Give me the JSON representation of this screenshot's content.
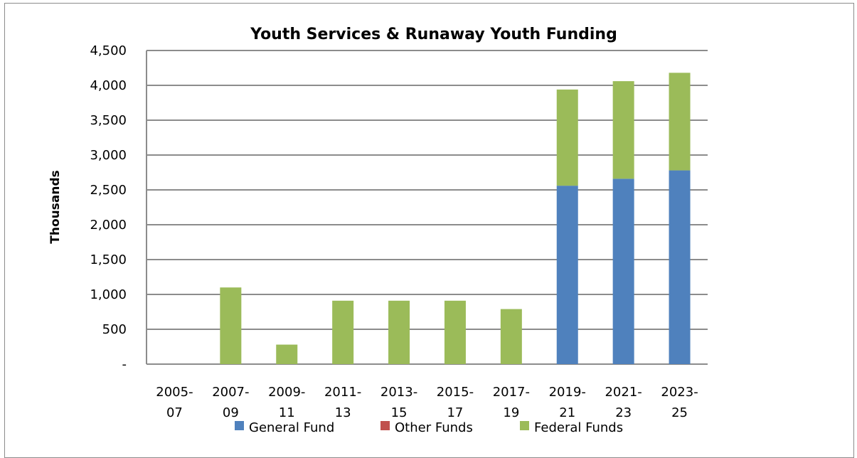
{
  "chart_data": {
    "type": "bar",
    "stacked": true,
    "title": "Youth Services & Runaway Youth Funding",
    "xlabel": "",
    "ylabel": "Thousands",
    "ylim": [
      0,
      4500
    ],
    "yticks": [
      0,
      500,
      1000,
      1500,
      2000,
      2500,
      3000,
      3500,
      4000,
      4500
    ],
    "ytick_labels": [
      "-",
      "500",
      "1,000",
      "1,500",
      "2,000",
      "2,500",
      "3,000",
      "3,500",
      "4,000",
      "4,500"
    ],
    "grid": true,
    "legend_position": "bottom",
    "categories": [
      [
        "2005-",
        "07"
      ],
      [
        "2007-",
        "09"
      ],
      [
        "2009-",
        "11"
      ],
      [
        "2011-",
        "13"
      ],
      [
        "2013-",
        "15"
      ],
      [
        "2015-",
        "17"
      ],
      [
        "2017-",
        "19"
      ],
      [
        "2019-",
        "21"
      ],
      [
        "2021-",
        "23"
      ],
      [
        "2023-",
        "25"
      ]
    ],
    "series": [
      {
        "name": "General Fund",
        "color": "#4f81bd",
        "values": [
          0,
          0,
          0,
          0,
          0,
          0,
          0,
          2560,
          2660,
          2780
        ]
      },
      {
        "name": "Other Funds",
        "color": "#c0504d",
        "values": [
          0,
          0,
          0,
          0,
          0,
          0,
          0,
          0,
          0,
          0
        ]
      },
      {
        "name": "Federal Funds",
        "color": "#9bbb59",
        "values": [
          0,
          1100,
          280,
          910,
          910,
          910,
          790,
          1380,
          1400,
          1400
        ]
      }
    ]
  }
}
